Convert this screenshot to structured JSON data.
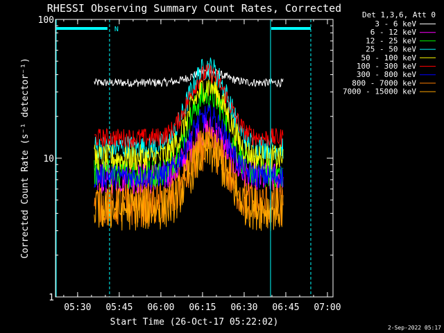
{
  "chart_data": {
    "type": "line",
    "title": "RHESSI Observing Summary Count Rates, Corrected",
    "xlabel": "Start Time (26-Oct-17 05:22:02)",
    "ylabel": "Corrected Count Rate (s⁻¹ detector⁻¹)",
    "y_scale": "log",
    "ylim": [
      1,
      100
    ],
    "xlim": [
      "05:22:02",
      "07:02:00"
    ],
    "x_ticks": [
      "05:30",
      "05:45",
      "06:00",
      "06:15",
      "06:30",
      "06:45",
      "07:00"
    ],
    "y_ticks": [
      "1",
      "10",
      "100"
    ],
    "legend_header": "Det 1,3,6, Att 0",
    "legend_placement": "right-outside",
    "grid": false,
    "data_window": [
      "05:36:00",
      "06:44:00"
    ],
    "night_start": "05:41:30",
    "night_end": "06:39:30",
    "saa_end": "06:54:00",
    "night_label": "N",
    "flag_colors": {
      "night": "#00ffff"
    },
    "footer": "2-Sep-2022 05:17",
    "series": [
      {
        "name": "3 - 6 keV",
        "color": "#ffffff",
        "base": 35,
        "peak": 42,
        "noise": 0.03
      },
      {
        "name": "6 - 12 keV",
        "color": "#ff00ff",
        "base": 7.2,
        "peak": 16,
        "noise": 0.12
      },
      {
        "name": "12 - 25 keV",
        "color": "#00ff00",
        "base": 7.8,
        "peak": 29,
        "noise": 0.11
      },
      {
        "name": "25 - 50 keV",
        "color": "#00ffff",
        "base": 12,
        "peak": 45,
        "noise": 0.09
      },
      {
        "name": "50 - 100 keV",
        "color": "#ffff00",
        "base": 10,
        "peak": 33,
        "noise": 0.1
      },
      {
        "name": "100 - 300 keV",
        "color": "#ff0000",
        "base": 14,
        "peak": 41,
        "noise": 0.07
      },
      {
        "name": "300 - 800 keV",
        "color": "#0000ff",
        "base": 7.4,
        "peak": 20,
        "noise": 0.09
      },
      {
        "name": "800 - 7000 keV",
        "color": "#ff8000",
        "base": 4.6,
        "peak": 12,
        "noise": 0.16
      },
      {
        "name": "7000 - 15000 keV",
        "color": "#ffa500",
        "base": 4.3,
        "peak": 11,
        "noise": 0.16
      }
    ]
  }
}
